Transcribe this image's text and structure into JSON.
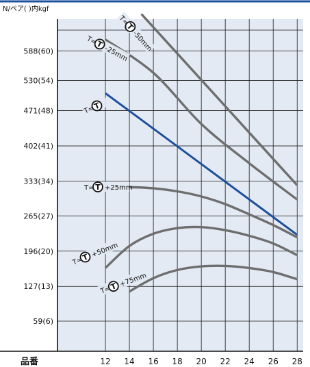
{
  "chart_data": {
    "type": "line",
    "unit_label": "N/ペア(  )内kgf",
    "xlabel": "品番",
    "x_ticks": [
      12,
      14,
      16,
      18,
      20,
      22,
      24,
      26,
      28
    ],
    "y_ticks": [
      {
        "value": 59,
        "label": "59(6)"
      },
      {
        "value": 127,
        "label": "127(13)"
      },
      {
        "value": 196,
        "label": "196(20)"
      },
      {
        "value": 265,
        "label": "265(27)"
      },
      {
        "value": 333,
        "label": "333(34)"
      },
      {
        "value": 402,
        "label": "402(41)"
      },
      {
        "value": 471,
        "label": "471(48)"
      },
      {
        "value": 530,
        "label": "530(54)"
      },
      {
        "value": 588,
        "label": "588(60)"
      }
    ],
    "xlim": [
      8,
      28.5
    ],
    "ylim": [
      0,
      650
    ],
    "grid": true,
    "highlight_color": "#1c4f9c",
    "series_color": "#6e6e6e",
    "background_color": "#e3eaf3",
    "series": [
      {
        "name": "T=Ⓣ -50mm",
        "x": [
          15,
          28
        ],
        "y": [
          660,
          325
        ],
        "highlight": false
      },
      {
        "name": "T=Ⓣ -25mm",
        "x": [
          12,
          16,
          20,
          24,
          28
        ],
        "y": [
          610,
          545,
          445,
          368,
          297
        ],
        "highlight": false
      },
      {
        "name": "T=Ⓣ",
        "x": [
          12,
          28
        ],
        "y": [
          505,
          228
        ],
        "highlight": true
      },
      {
        "name": "T=Ⓣ +25mm",
        "x": [
          12,
          14,
          16,
          18,
          20,
          22,
          24,
          26,
          28
        ],
        "y": [
          318,
          321,
          319,
          313,
          303,
          288,
          268,
          247,
          223
        ],
        "highlight": false
      },
      {
        "name": "T=Ⓣ +50mm",
        "x": [
          12,
          14,
          16,
          18,
          20,
          22,
          24,
          26,
          28
        ],
        "y": [
          163,
          206,
          230,
          241,
          243,
          237,
          226,
          211,
          188
        ],
        "highlight": false
      },
      {
        "name": "T=Ⓣ +75mm",
        "x": [
          14,
          16,
          18,
          20,
          22,
          24,
          26,
          28
        ],
        "y": [
          117,
          143,
          159,
          166,
          167,
          163,
          155,
          141
        ],
        "highlight": false
      }
    ],
    "annotations": [
      {
        "prefix": "T=",
        "symbol": "T",
        "suffix": "-50mm"
      },
      {
        "prefix": "T=",
        "symbol": "T",
        "suffix": "-25mm"
      },
      {
        "prefix": "T=",
        "symbol": "T",
        "suffix": ""
      },
      {
        "prefix": "T=",
        "symbol": "T",
        "suffix": "+25mm"
      },
      {
        "prefix": "T=",
        "symbol": "T",
        "suffix": "+50mm"
      },
      {
        "prefix": "T=",
        "symbol": "T",
        "suffix": "+75mm"
      }
    ]
  }
}
